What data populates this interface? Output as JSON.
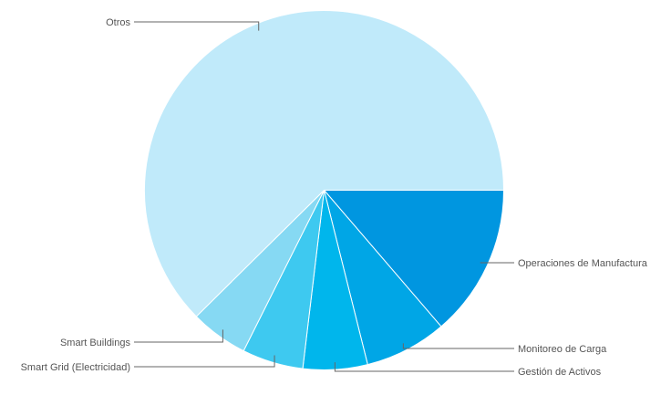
{
  "chart_data": {
    "type": "pie",
    "title": "",
    "start": "3 o'clock, clockwise",
    "slices": [
      {
        "label": "Operaciones de Manufactura",
        "value": 13.7,
        "color": "#0096e0"
      },
      {
        "label": "Monitoreo de Carga",
        "value": 7.4,
        "color": "#00a6e6"
      },
      {
        "label": "Gestión de Activos",
        "value": 5.8,
        "color": "#00b6ec"
      },
      {
        "label": "Smart Grid (Electricidad)",
        "value": 5.5,
        "color": "#3ec9f0"
      },
      {
        "label": "Smart Buildings",
        "value": 5.2,
        "color": "#86d9f3"
      },
      {
        "label": "Otros",
        "value": 62.4,
        "color": "#c0eafa"
      }
    ]
  }
}
